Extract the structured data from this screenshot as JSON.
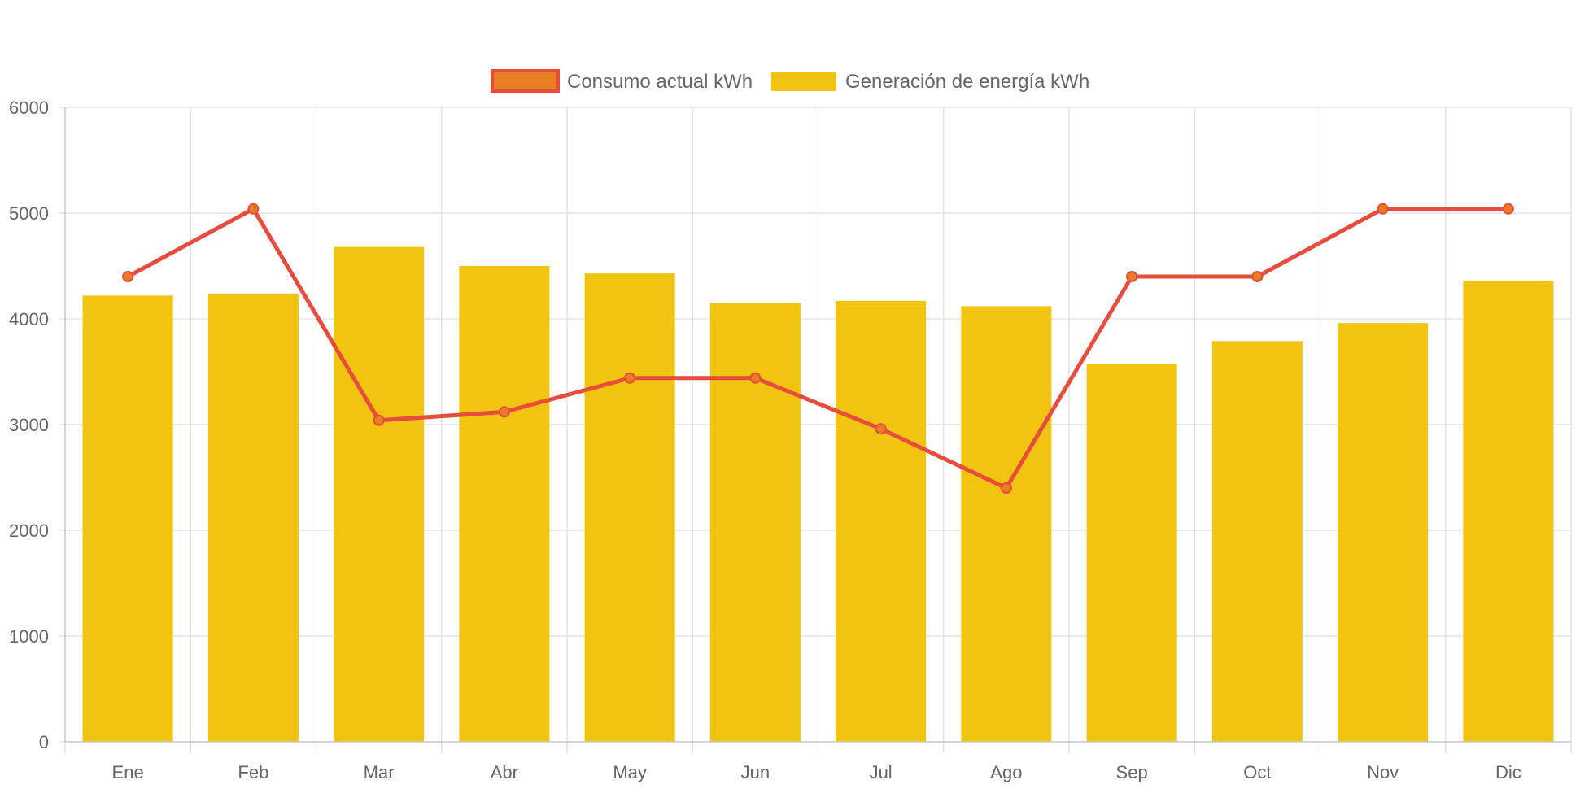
{
  "chart_data": {
    "type": "bar",
    "categories": [
      "Ene",
      "Feb",
      "Mar",
      "Abr",
      "May",
      "Jun",
      "Jul",
      "Ago",
      "Sep",
      "Oct",
      "Nov",
      "Dic"
    ],
    "series": [
      {
        "name": "Consumo actual kWh",
        "type": "line",
        "color": "#e74c3c",
        "point_color": "#e67e22",
        "values": [
          4400,
          5040,
          3040,
          3120,
          3440,
          3440,
          2960,
          2400,
          4400,
          4400,
          5040,
          5040
        ]
      },
      {
        "name": "Generación de energía kWh",
        "type": "bar",
        "color": "#f1c40f",
        "values": [
          4220,
          4240,
          4680,
          4500,
          4430,
          4150,
          4170,
          4120,
          3570,
          3790,
          3960,
          4360
        ]
      }
    ],
    "ylim": [
      0,
      6000
    ],
    "yticks": [
      0,
      1000,
      2000,
      3000,
      4000,
      5000,
      6000
    ],
    "grid": true,
    "legend_position": "top-center",
    "title": "",
    "xlabel": "",
    "ylabel": ""
  }
}
